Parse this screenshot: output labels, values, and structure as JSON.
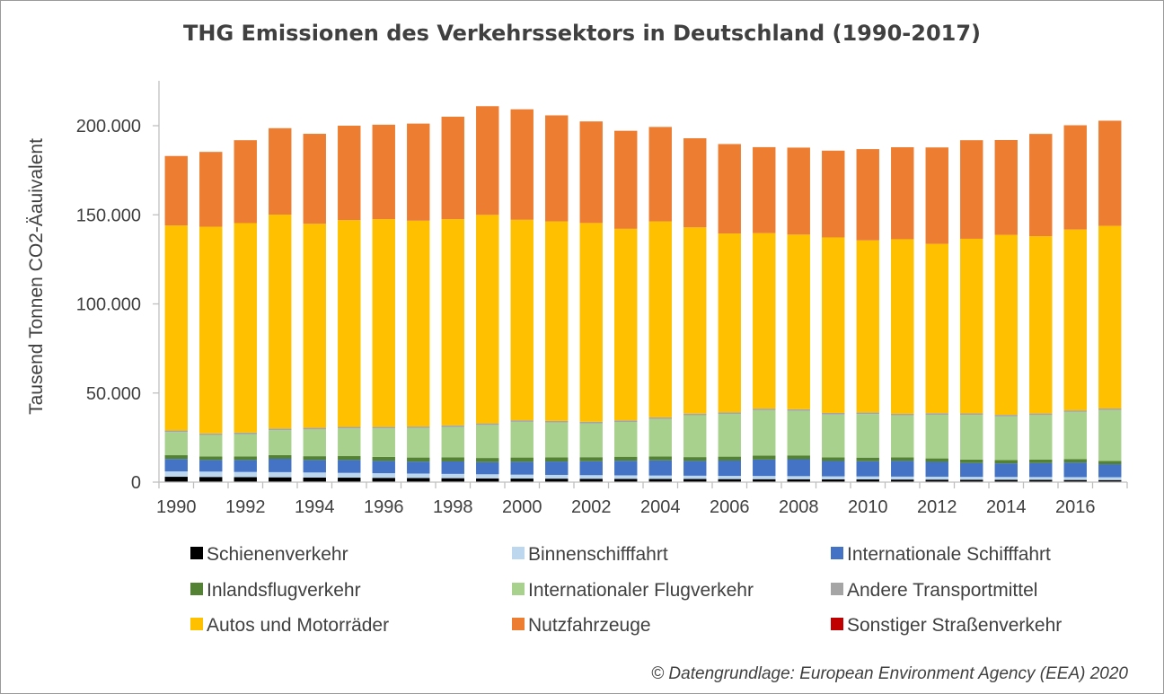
{
  "chart_data": {
    "type": "bar",
    "stacked": true,
    "title": "THG Emissionen des Verkehrssektors in Deutschland (1990-2017)",
    "xlabel": "",
    "ylabel": "Tausend Tonnen CO2-Äauivalent",
    "ylim": [
      0,
      225000
    ],
    "yticks": [
      0,
      50000,
      100000,
      150000,
      200000
    ],
    "ytick_labels": [
      "0",
      "50.000",
      "100.000",
      "150.000",
      "200.000"
    ],
    "grid": false,
    "legend_position": "bottom",
    "categories": [
      "1990",
      "1991",
      "1992",
      "1993",
      "1994",
      "1995",
      "1996",
      "1997",
      "1998",
      "1999",
      "2000",
      "2001",
      "2002",
      "2003",
      "2004",
      "2005",
      "2006",
      "2007",
      "2008",
      "2009",
      "2010",
      "2011",
      "2012",
      "2013",
      "2014",
      "2015",
      "2016",
      "2017"
    ],
    "xtick_labels": [
      "1990",
      "",
      "1992",
      "",
      "1994",
      "",
      "1996",
      "",
      "1998",
      "",
      "2000",
      "",
      "2002",
      "",
      "2004",
      "",
      "2006",
      "",
      "2008",
      "",
      "2010",
      "",
      "2012",
      "",
      "2014",
      "",
      "2016",
      ""
    ],
    "series": [
      {
        "name": "Schienenverkehr",
        "color": "#000000",
        "values": [
          3000,
          2900,
          2800,
          2700,
          2600,
          2500,
          2400,
          2300,
          2200,
          2100,
          2000,
          1950,
          1900,
          1850,
          1800,
          1750,
          1700,
          1650,
          1600,
          1550,
          1500,
          1450,
          1400,
          1350,
          1300,
          1250,
          1200,
          1150
        ]
      },
      {
        "name": "Binnenschifffahrt",
        "color": "#bdd7ee",
        "values": [
          3000,
          3000,
          2900,
          2900,
          2800,
          2700,
          2600,
          2500,
          2400,
          2300,
          2200,
          2100,
          2000,
          1950,
          1900,
          1850,
          1800,
          1800,
          1750,
          1700,
          1700,
          1650,
          1650,
          1600,
          1600,
          1600,
          1600,
          1600
        ]
      },
      {
        "name": "Internationale Schifffahrt",
        "color": "#4472c4",
        "values": [
          7000,
          6500,
          6700,
          7500,
          7000,
          7200,
          6900,
          6700,
          7000,
          6800,
          7200,
          7500,
          7800,
          8200,
          8500,
          8300,
          8600,
          9200,
          9500,
          8600,
          8500,
          8800,
          8300,
          7800,
          7600,
          7900,
          8200,
          7300
        ]
      },
      {
        "name": "Inlandsflugverkehr",
        "color": "#548235",
        "values": [
          2100,
          2000,
          2050,
          2100,
          2150,
          2200,
          2250,
          2300,
          2350,
          2350,
          2400,
          2350,
          2300,
          2250,
          2200,
          2150,
          2200,
          2200,
          2150,
          2050,
          2050,
          2000,
          1950,
          1900,
          1850,
          1850,
          1850,
          1850
        ]
      },
      {
        "name": "Internationaler Flugverkehr",
        "color": "#a9d18e",
        "values": [
          13000,
          12000,
          12500,
          14000,
          15000,
          15500,
          16000,
          16500,
          17000,
          18500,
          20000,
          19500,
          19000,
          19500,
          21000,
          23500,
          24000,
          25500,
          25000,
          24000,
          24500,
          23500,
          24500,
          25000,
          24500,
          25000,
          26500,
          28500
        ]
      },
      {
        "name": "Andere Transportmittel",
        "color": "#a5a5a5",
        "values": [
          900,
          900,
          900,
          900,
          900,
          900,
          900,
          900,
          900,
          900,
          900,
          900,
          900,
          900,
          900,
          900,
          900,
          900,
          900,
          900,
          900,
          900,
          900,
          900,
          900,
          900,
          900,
          900
        ]
      },
      {
        "name": "Autos und Motorräder",
        "color": "#ffc000",
        "values": [
          115000,
          116000,
          117500,
          120000,
          114500,
          116000,
          116500,
          115500,
          115700,
          117000,
          112500,
          112000,
          111500,
          107500,
          110000,
          104500,
          100300,
          98500,
          98000,
          98500,
          96500,
          98000,
          95000,
          98000,
          101000,
          99500,
          101500,
          102500
        ]
      },
      {
        "name": "Nutzfahrzeuge",
        "color": "#ed7d31",
        "values": [
          39000,
          42000,
          46500,
          48500,
          50500,
          53000,
          53000,
          54500,
          57500,
          61000,
          62000,
          59500,
          57000,
          55000,
          53000,
          50000,
          50200,
          48200,
          48800,
          48700,
          51200,
          51600,
          54100,
          55300,
          53200,
          57400,
          58500,
          59000
        ]
      },
      {
        "name": "Sonstiger Straßenverkehr",
        "color": "#c00000",
        "values": [
          0,
          0,
          0,
          0,
          0,
          0,
          0,
          0,
          0,
          0,
          0,
          0,
          0,
          0,
          0,
          0,
          0,
          0,
          0,
          0,
          0,
          0,
          0,
          0,
          0,
          0,
          0,
          0
        ]
      }
    ]
  },
  "legend_columns": 3,
  "credit": "© Datengrundlage: European Environment Agency (EEA) 2020"
}
